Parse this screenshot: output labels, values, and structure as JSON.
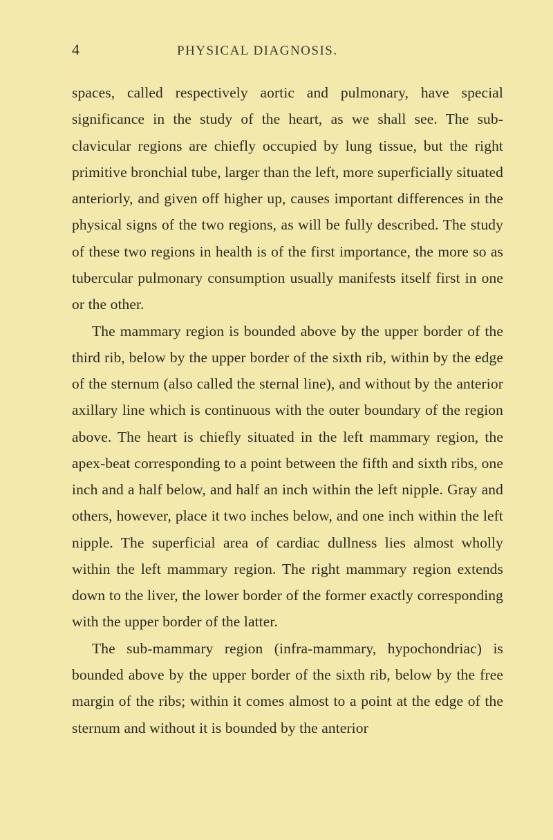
{
  "page_number": "4",
  "running_head": "PHYSICAL DIAGNOSIS.",
  "paragraphs": [
    "spaces, called respectively aortic and pulmonary, have special significance in the study of the heart, as we shall see. The sub-clavicular regions are chiefly occupied by lung tissue, but the right primitive bronchial tube, larger than the left, more superficially situated anteriorly, and given off higher up, causes important differences in the physical signs of the two regions, as will be fully described. The study of these two regions in health is of the first importance, the more so as tubercular pulmonary consumption usually manifests itself first in one or the other.",
    "The mammary region is bounded above by the upper border of the third rib, below by the upper border of the sixth rib, within by the edge of the sternum (also called the sternal line), and without by the anterior axillary line which is continuous with the outer boundary of the region above. The heart is chiefly situated in the left mammary region, the apex-beat corresponding to a point between the fifth and sixth ribs, one inch and a half below, and half an inch within the left nipple. Gray and others, however, place it two inches below, and one inch within the left nipple. The superficial area of cardiac dullness lies almost wholly within the left mammary region. The right mammary region extends down to the liver, the lower border of the former exactly corresponding with the upper border of the latter.",
    "The sub-mammary region (infra-mammary, hypochondriac) is bounded above by the upper border of the sixth rib, below by the free margin of the ribs; within it comes almost to a point at the edge of the sternum and without it is bounded by the anterior"
  ]
}
